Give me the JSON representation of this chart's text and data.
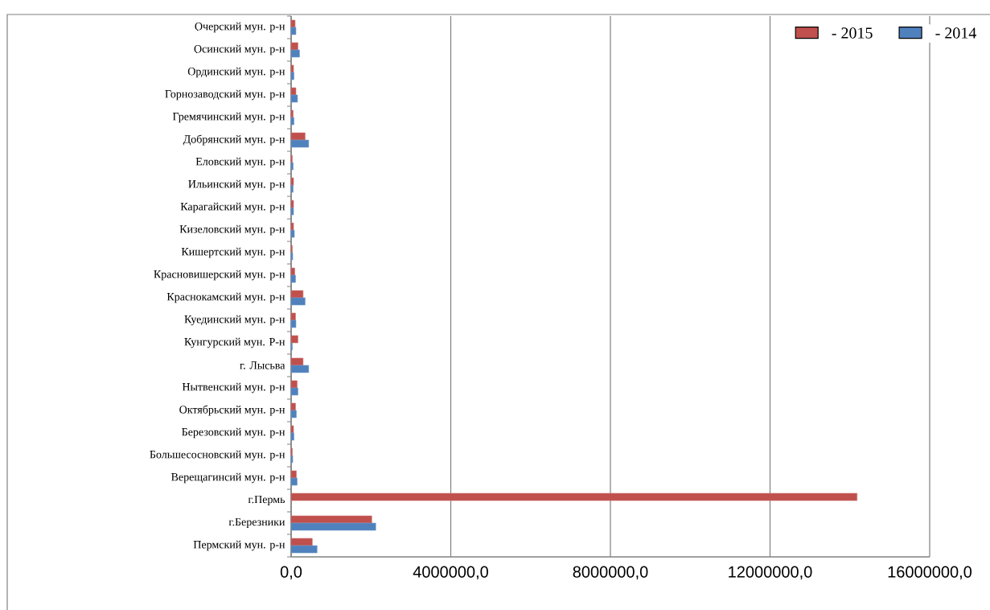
{
  "chart_data": {
    "type": "bar",
    "orientation": "horizontal",
    "categories": [
      "Очерский мун. р-н",
      "Осинский мун. р-н",
      "Ординский мун. р-н",
      "Горнозаводский мун. р-н",
      "Гремячинский мун. р-н",
      "Добрянский мун. р-н",
      "Еловский мун. р-н",
      "Ильинский мун. р-н",
      "Карагайский мун. р-н",
      "Кизеловский мун. р-н",
      "Кишертский мун. р-н",
      "Красновишерский мун. р-н",
      "Краснокамский мун. р-н",
      "Куединский мун. р-н",
      "Кунгурский мун. Р-н",
      "г. Лысьва",
      "Нытвенский мун. р-н",
      "Октябрьский мун. р-н",
      "Березовский мун. р-н",
      "Большесосновский мун. р-н",
      "Верещагинсий мун. р-н",
      "г.Пермь",
      "г.Березники",
      "Пермский мун. р-н"
    ],
    "series": [
      {
        "name": "- 2015",
        "color": "#c0504d",
        "values": [
          100000,
          170000,
          60000,
          120000,
          50000,
          350000,
          30000,
          60000,
          60000,
          60000,
          30000,
          90000,
          300000,
          110000,
          170000,
          300000,
          150000,
          110000,
          60000,
          30000,
          130000,
          14180000,
          2020000,
          530000
        ]
      },
      {
        "name": "- 2014",
        "color": "#4f81bd",
        "values": [
          120000,
          210000,
          70000,
          160000,
          70000,
          440000,
          50000,
          50000,
          60000,
          80000,
          40000,
          110000,
          350000,
          120000,
          30000,
          440000,
          170000,
          130000,
          70000,
          40000,
          150000,
          null,
          2120000,
          650000
        ]
      }
    ],
    "xlim": [
      0,
      16000000
    ],
    "xticks": [
      {
        "value": 0,
        "label": "0,0"
      },
      {
        "value": 4000000,
        "label": "4000000,0"
      },
      {
        "value": 8000000,
        "label": "8000000,0"
      },
      {
        "value": 12000000,
        "label": "12000000,0"
      },
      {
        "value": 16000000,
        "label": "16000000,0"
      }
    ],
    "grid": "x",
    "legend": "top right"
  }
}
